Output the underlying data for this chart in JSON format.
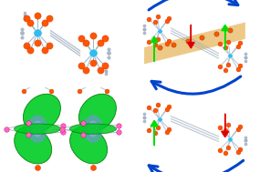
{
  "background": "#ffffff",
  "border_color": "#2299ff",
  "border_width": 1.8,
  "orange_color": "#ff5500",
  "gray_color": "#aabbcc",
  "blue_metal_color": "#33bbee",
  "green_arrow_color": "#00dd00",
  "red_arrow_color": "#dd0000",
  "blue_arrow_color": "#0044cc",
  "tan_band_color": "#e8b860",
  "green_orbital_color": "#00cc22",
  "pink_orbital_color": "#ff66bb",
  "panel_bg": "#eef6ff",
  "bond_color": "#99aabb"
}
